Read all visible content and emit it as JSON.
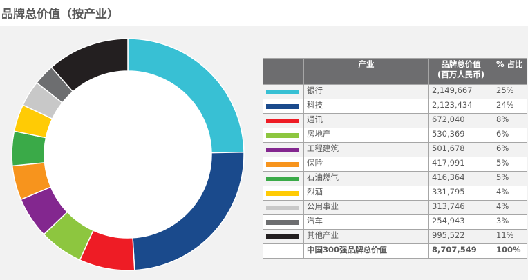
{
  "title": "品牌总价值（按产业）",
  "table": {
    "headers": [
      "产业",
      "品牌总价值\n(百万人民币)",
      "% 占比"
    ],
    "rows": [
      {
        "name": "银行",
        "value": "2,149,667",
        "pct": "25%",
        "color": "#38c0d4"
      },
      {
        "name": "科技",
        "value": "2,123,434",
        "pct": "24%",
        "color": "#1a4a8c"
      },
      {
        "name": "通讯",
        "value": "672,040",
        "pct": "8%",
        "color": "#ee1c25"
      },
      {
        "name": "房地产",
        "value": "530,369",
        "pct": "6%",
        "color": "#8dc63f"
      },
      {
        "name": "工程建筑",
        "value": "501,678",
        "pct": "6%",
        "color": "#83278f"
      },
      {
        "name": "保险",
        "value": "417,991",
        "pct": "5%",
        "color": "#f7941d"
      },
      {
        "name": "石油燃气",
        "value": "416,364",
        "pct": "5%",
        "color": "#3aaa48"
      },
      {
        "name": "烈酒",
        "value": "331,795",
        "pct": "4%",
        "color": "#ffcb05"
      },
      {
        "name": "公用事业",
        "value": "313,746",
        "pct": "4%",
        "color": "#c8c8c8"
      },
      {
        "name": "汽车",
        "value": "254,943",
        "pct": "3%",
        "color": "#6d6e70"
      },
      {
        "name": "其他产业",
        "value": "995,522",
        "pct": "11%",
        "color": "#231f20"
      }
    ],
    "total": {
      "name": "中国300强品牌总价值",
      "value": "8,707,549",
      "pct": "100%"
    }
  },
  "chart_data": {
    "type": "pie",
    "donut": true,
    "title": "品牌总价值（按产业）",
    "categories": [
      "银行",
      "科技",
      "通讯",
      "房地产",
      "工程建筑",
      "保险",
      "石油燃气",
      "烈酒",
      "公用事业",
      "汽车",
      "其他产业"
    ],
    "values": [
      2149667,
      2123434,
      672040,
      530369,
      501678,
      417991,
      416364,
      331795,
      313746,
      254943,
      995522
    ],
    "colors": [
      "#38c0d4",
      "#1a4a8c",
      "#ee1c25",
      "#8dc63f",
      "#83278f",
      "#f7941d",
      "#3aaa48",
      "#ffcb05",
      "#c8c8c8",
      "#6d6e70",
      "#231f20"
    ],
    "start": "12 o'clock",
    "direction": "clockwise"
  }
}
